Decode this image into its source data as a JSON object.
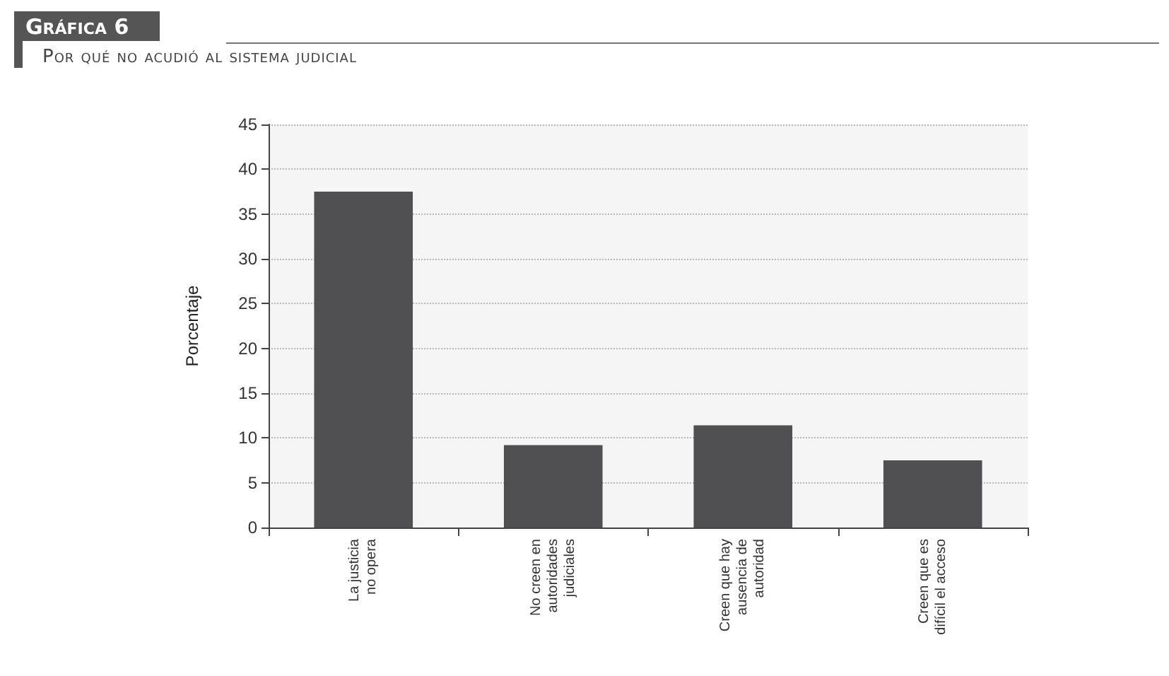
{
  "chart_data": {
    "type": "bar",
    "title": "Gráfica 6",
    "subtitle": "Por qué no acudió al sistema judicial",
    "ylabel": "Porcentaje",
    "categories": [
      "La justicia\nno opera",
      "No creen en\nautoridades\njudiciales",
      "Creen que hay\nausencia de\nautoridad",
      "Creen que es\ndifícil el acceso"
    ],
    "values": [
      37.5,
      9.2,
      11.4,
      7.5
    ],
    "color": "#505052",
    "ylim": [
      0,
      45
    ],
    "yticks": [
      0,
      5,
      10,
      15,
      20,
      25,
      30,
      35,
      40,
      45
    ],
    "grid": "y"
  }
}
